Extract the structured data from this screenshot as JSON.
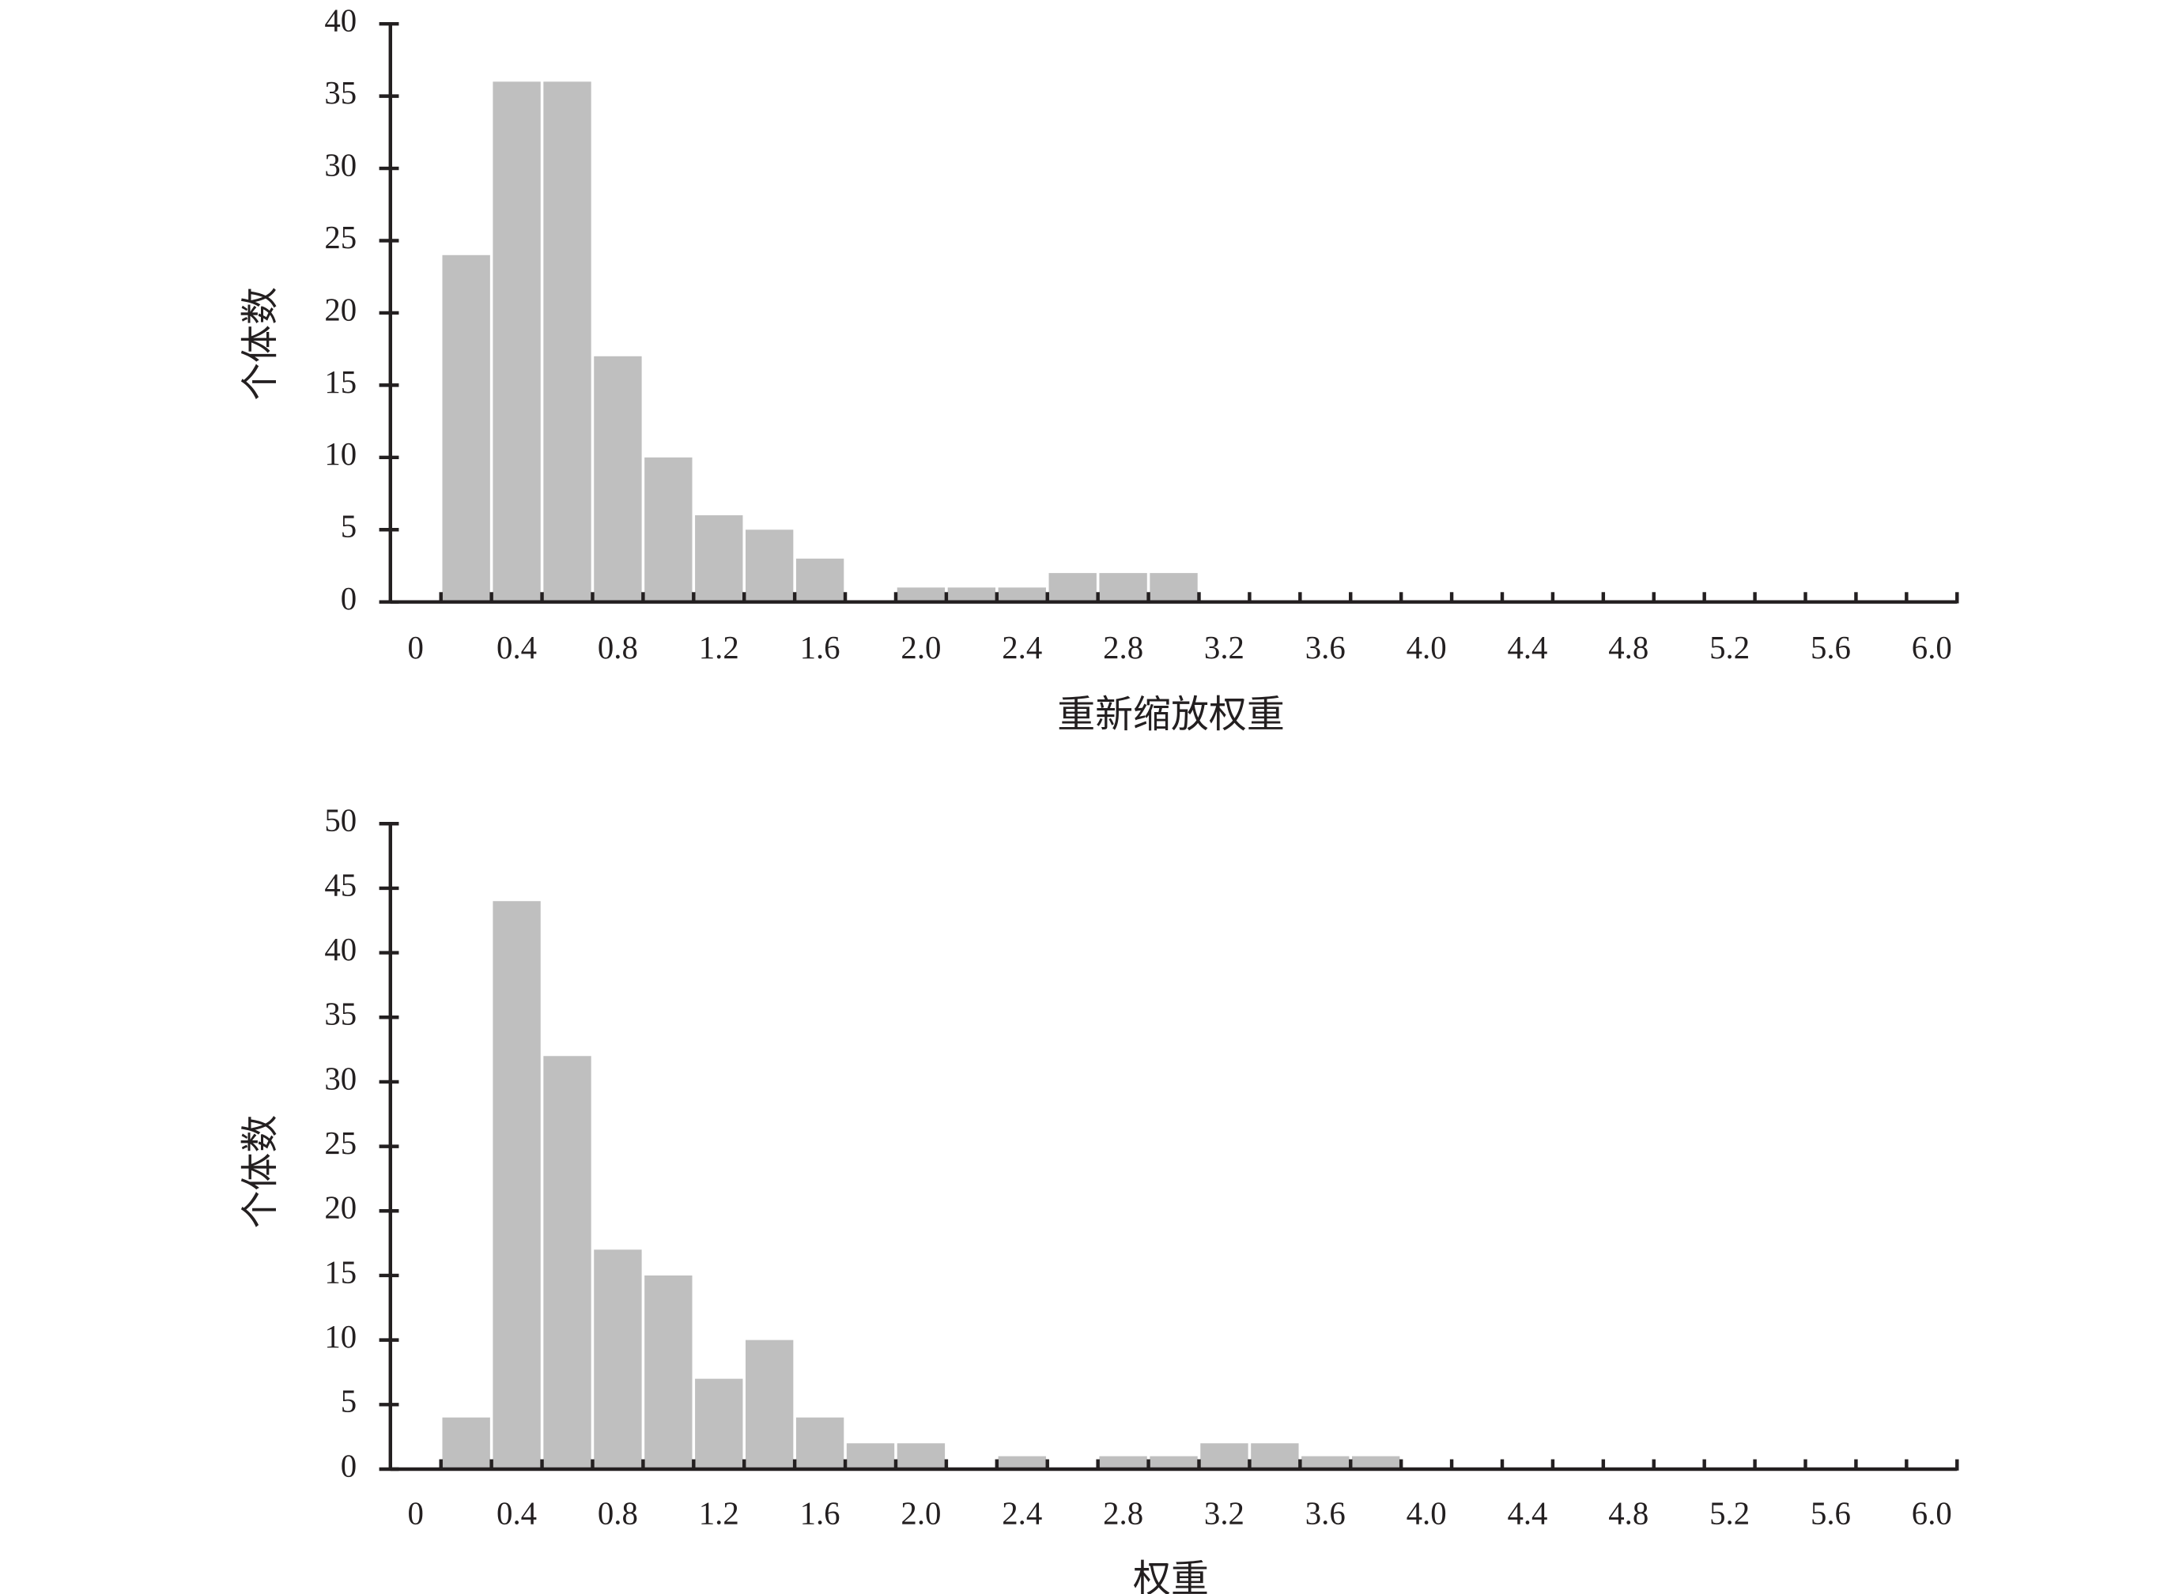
{
  "chart_data": [
    {
      "type": "bar",
      "ylabel": "个体数",
      "xlabel": "重新缩放权重",
      "color": "#bfbfbf",
      "categories": [
        "0",
        null,
        "0.4",
        null,
        "0.8",
        null,
        "1.2",
        null,
        "1.6",
        null,
        "2.0",
        null,
        "2.4",
        null,
        "2.8",
        null,
        "3.2",
        null,
        "3.6",
        null,
        "4.0",
        null,
        "4.4",
        null,
        "4.8",
        null,
        "5.2",
        null,
        "5.6",
        null,
        "6.0"
      ],
      "values": [
        0,
        24,
        36,
        36,
        17,
        10,
        6,
        5,
        3,
        0,
        1,
        1,
        1,
        2,
        2,
        2,
        0,
        0,
        0,
        0,
        0,
        0,
        0,
        0,
        0,
        0,
        0,
        0,
        0,
        0,
        0
      ],
      "ylim": [
        0,
        40
      ],
      "yticks": [
        0,
        5,
        10,
        15,
        20,
        25,
        30,
        35,
        40
      ]
    },
    {
      "type": "bar",
      "ylabel": "个体数",
      "xlabel": "权重",
      "color": "#bfbfbf",
      "categories": [
        "0",
        null,
        "0.4",
        null,
        "0.8",
        null,
        "1.2",
        null,
        "1.6",
        null,
        "2.0",
        null,
        "2.4",
        null,
        "2.8",
        null,
        "3.2",
        null,
        "3.6",
        null,
        "4.0",
        null,
        "4.4",
        null,
        "4.8",
        null,
        "5.2",
        null,
        "5.6",
        null,
        "6.0"
      ],
      "values": [
        0,
        4,
        44,
        32,
        17,
        15,
        7,
        10,
        4,
        2,
        2,
        0,
        1,
        0,
        1,
        1,
        2,
        2,
        1,
        1,
        0,
        0,
        0,
        0,
        0,
        0,
        0,
        0,
        0,
        0,
        0
      ],
      "ylim": [
        0,
        50
      ],
      "yticks": [
        0,
        5,
        10,
        15,
        20,
        25,
        30,
        35,
        40,
        45,
        50
      ]
    }
  ]
}
